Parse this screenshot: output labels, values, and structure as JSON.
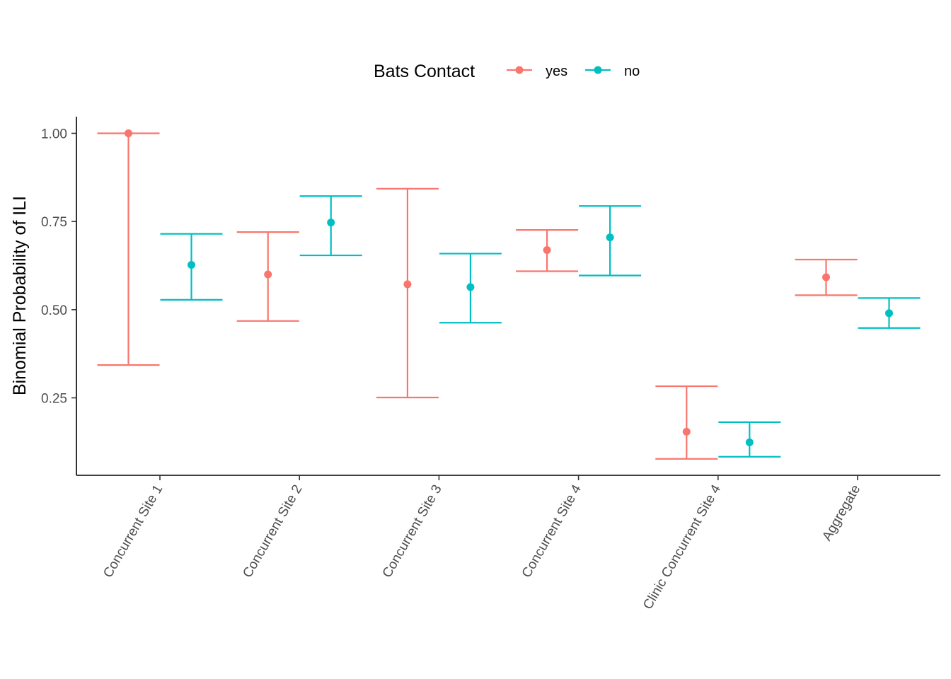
{
  "chart_data": {
    "type": "errorbar",
    "title": "",
    "xlabel": "",
    "ylabel": "Binomial Probability of ILI",
    "ylim": [
      0.03,
      1.05
    ],
    "yticks": [
      "0.25",
      "0.50",
      "0.75",
      "1.00"
    ],
    "categories": [
      "Concurrent Site 1",
      "Concurrent Site 2",
      "Concurrent Site 3",
      "Concurrent Site 4",
      "Clinic Concurrent Site 4",
      "Aggregate"
    ],
    "grid": false,
    "legend": {
      "title": "Bats Contact",
      "position": "top"
    },
    "series": [
      {
        "name": "yes",
        "color": "#F8766D",
        "values": [
          1.0,
          0.6,
          0.572,
          0.669,
          0.154,
          0.592
        ],
        "lower": [
          0.343,
          0.468,
          0.251,
          0.609,
          0.077,
          0.541
        ],
        "upper": [
          1.0,
          0.72,
          0.843,
          0.726,
          0.283,
          0.642
        ]
      },
      {
        "name": "no",
        "color": "#00BFC4",
        "values": [
          0.627,
          0.747,
          0.564,
          0.705,
          0.124,
          0.49
        ],
        "lower": [
          0.528,
          0.654,
          0.463,
          0.597,
          0.083,
          0.448
        ],
        "upper": [
          0.715,
          0.822,
          0.659,
          0.794,
          0.181,
          0.533
        ]
      }
    ]
  }
}
